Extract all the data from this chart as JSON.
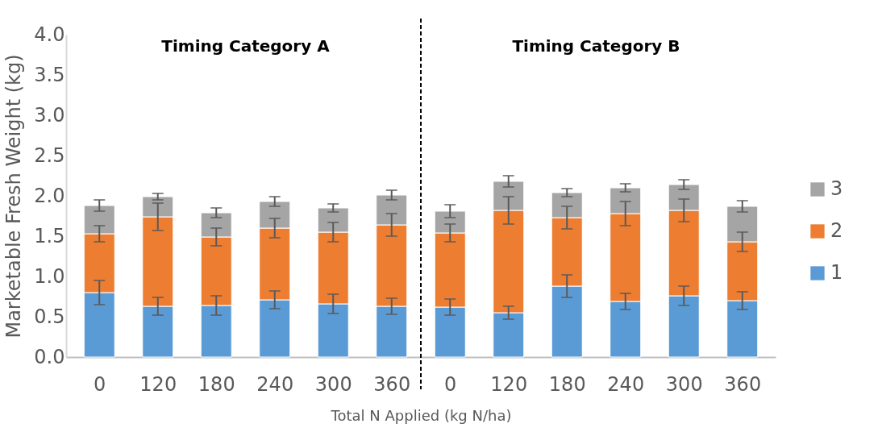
{
  "chart_data": {
    "type": "bar",
    "ylabel": "Marketable Fresh Weight (kg)",
    "xlabel": "Total N Applied (kg N/ha)",
    "stacked": true,
    "categories": [
      "0",
      "120",
      "180",
      "240",
      "300",
      "360",
      "0",
      "120",
      "180",
      "240",
      "300",
      "360"
    ],
    "ylim": [
      0,
      4
    ],
    "yticks": [
      {
        "value": 0,
        "label": "0.0"
      },
      {
        "value": 0.5,
        "label": "0.5"
      },
      {
        "value": 1,
        "label": "1.0"
      },
      {
        "value": 1.5,
        "label": "1.5"
      },
      {
        "value": 2,
        "label": "2.0"
      },
      {
        "value": 2.5,
        "label": "2.5"
      },
      {
        "value": 3,
        "label": "3.0"
      },
      {
        "value": 3.5,
        "label": "3.5"
      },
      {
        "value": 4,
        "label": "4.0"
      }
    ],
    "legend": "right",
    "grid": false,
    "annotations": [
      "Timing Category A",
      "Timing Category B"
    ],
    "series": [
      {
        "name": "1",
        "color": "#5b9bd5",
        "values": [
          0.8,
          0.63,
          0.64,
          0.71,
          0.66,
          0.63,
          0.62,
          0.55,
          0.88,
          0.69,
          0.76,
          0.7
        ],
        "errors": [
          0.15,
          0.11,
          0.12,
          0.11,
          0.12,
          0.1,
          0.1,
          0.08,
          0.14,
          0.1,
          0.12,
          0.11
        ]
      },
      {
        "name": "2",
        "color": "#ed7d31",
        "values": [
          0.73,
          1.11,
          0.85,
          0.89,
          0.89,
          1.01,
          0.92,
          1.27,
          0.85,
          1.09,
          1.06,
          0.73
        ],
        "errors": [
          0.1,
          0.17,
          0.11,
          0.12,
          0.12,
          0.14,
          0.11,
          0.17,
          0.14,
          0.15,
          0.14,
          0.12
        ]
      },
      {
        "name": "3",
        "color": "#a5a5a5",
        "values": [
          0.35,
          0.25,
          0.3,
          0.33,
          0.3,
          0.37,
          0.27,
          0.36,
          0.31,
          0.32,
          0.32,
          0.44
        ],
        "errors": [
          0.07,
          0.04,
          0.06,
          0.06,
          0.05,
          0.06,
          0.08,
          0.07,
          0.05,
          0.05,
          0.06,
          0.07
        ]
      }
    ]
  }
}
